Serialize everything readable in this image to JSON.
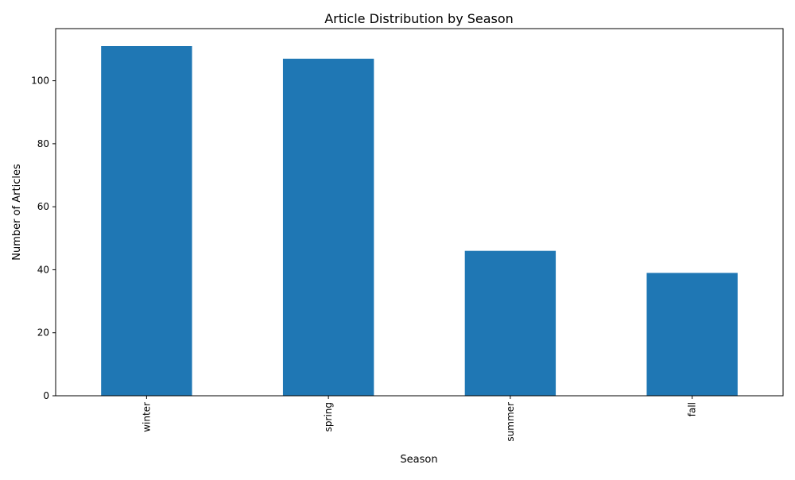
{
  "chart_data": {
    "type": "bar",
    "title": "Article Distribution by Season",
    "xlabel": "Season",
    "ylabel": "Number of Articles",
    "categories": [
      "winter",
      "spring",
      "summer",
      "fall"
    ],
    "values": [
      111,
      107,
      46,
      39
    ],
    "ylim": [
      0,
      116.55
    ],
    "yticks": [
      0,
      20,
      40,
      60,
      80,
      100
    ],
    "x_tick_rotation": 90,
    "bar_color": "#1f77b4",
    "grid": false,
    "legend": "none"
  }
}
